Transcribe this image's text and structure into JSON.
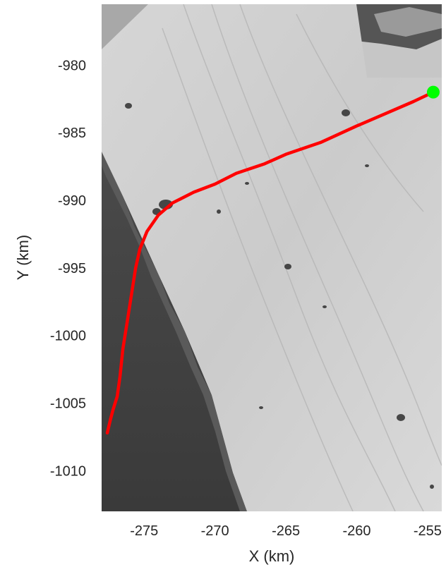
{
  "chart_data": {
    "type": "line",
    "xlabel": "X (km)",
    "ylabel": "Y (km)",
    "xlim": [
      -278,
      -254
    ],
    "ylim": [
      -1013,
      -975.5
    ],
    "xticks": [
      -275,
      -270,
      -265,
      -260,
      -255
    ],
    "yticks": [
      -980,
      -985,
      -990,
      -995,
      -1000,
      -1005,
      -1010
    ],
    "xtick_labels": [
      "-275",
      "-270",
      "-265",
      "-260",
      "-255"
    ],
    "ytick_labels": [
      "-980",
      "-985",
      "-990",
      "-995",
      "-1000",
      "-1005",
      "-1010"
    ],
    "grid": false,
    "background": "grayscale satellite image of a glacier",
    "series": [
      {
        "color": "#ff0000",
        "x": [
          -254.6,
          -256.0,
          -258.0,
          -260.0,
          -262.5,
          -265.0,
          -266.5,
          -268.5,
          -270.0,
          -271.5,
          -273.0,
          -274.0,
          -274.8,
          -275.3,
          -275.6,
          -275.9,
          -276.2,
          -276.5,
          -276.7,
          -276.9,
          -277.2,
          -277.4,
          -277.6
        ],
        "y": [
          -982.0,
          -982.7,
          -983.6,
          -984.5,
          -985.7,
          -986.6,
          -987.3,
          -988.0,
          -988.8,
          -989.4,
          -990.2,
          -991.1,
          -992.3,
          -993.6,
          -995.0,
          -997.0,
          -999.0,
          -1001.0,
          -1003.0,
          -1004.5,
          -1005.5,
          -1006.3,
          -1007.2
        ]
      }
    ],
    "markers": [
      {
        "x": -254.6,
        "y": -982.0,
        "color": "#00ff00"
      }
    ]
  }
}
